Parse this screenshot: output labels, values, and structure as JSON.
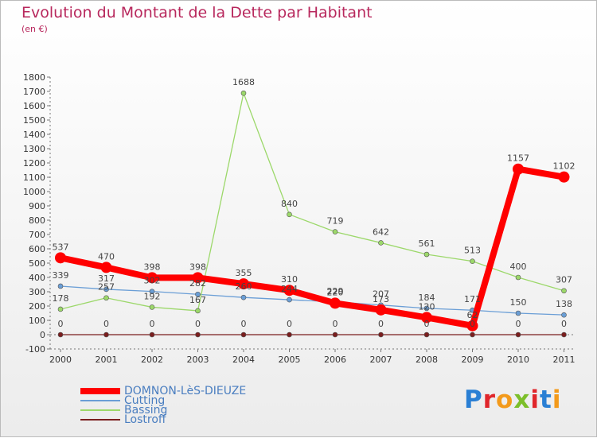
{
  "title": "Evolution du Montant de la Dette par Habitant",
  "subtitle": "(en €)",
  "logo_text": "Proxiti",
  "chart_data": {
    "type": "line",
    "title": "Evolution du Montant de la Dette par Habitant",
    "subtitle": "(en €)",
    "xlabel": "",
    "ylabel": "",
    "x": [
      "2000",
      "2001",
      "2002",
      "2003",
      "2004",
      "2005",
      "2006",
      "2007",
      "2008",
      "2009",
      "2010",
      "2011"
    ],
    "ylim": [
      -100,
      1800
    ],
    "yticks": [
      -100,
      0,
      100,
      200,
      300,
      400,
      500,
      600,
      700,
      800,
      900,
      1000,
      1100,
      1200,
      1300,
      1400,
      1500,
      1600,
      1700,
      1800
    ],
    "grid": false,
    "legend": "bottom-left",
    "series": [
      {
        "name": "DOMNON-LèS-DIEUZE",
        "color": "#ff0000",
        "width": 8,
        "marker": 7,
        "values": [
          537,
          470,
          398,
          398,
          355,
          310,
          220,
          173,
          120,
          62,
          1157,
          1102
        ]
      },
      {
        "name": "Cutting",
        "color": "#6a9ed6",
        "width": 1.3,
        "marker": 3,
        "values": [
          339,
          317,
          302,
          282,
          260,
          244,
          229,
          207,
          184,
          171,
          150,
          138
        ]
      },
      {
        "name": "Bassing",
        "color": "#9cd86a",
        "width": 1.3,
        "marker": 3,
        "values": [
          178,
          257,
          192,
          167,
          1688,
          840,
          719,
          642,
          561,
          513,
          400,
          307
        ]
      },
      {
        "name": "Lostroff",
        "color": "#7a1e1e",
        "width": 1.3,
        "marker": 3,
        "values": [
          0,
          0,
          0,
          0,
          0,
          0,
          0,
          0,
          0,
          0,
          0,
          0
        ]
      }
    ]
  }
}
